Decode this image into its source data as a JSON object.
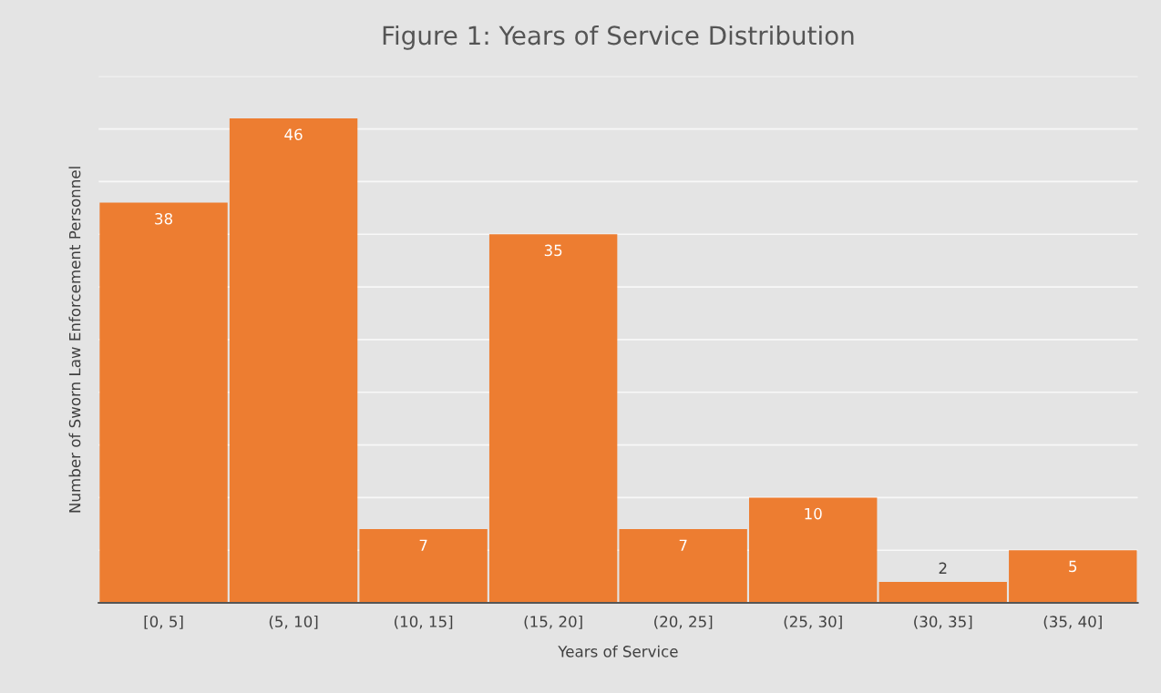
{
  "chart_data": {
    "type": "bar",
    "title": "Figure 1: Years of Service Distribution",
    "xlabel": "Years of Service",
    "ylabel": "Number of Sworn Law Enforcement Personnel",
    "categories": [
      "[0, 5]",
      "(5, 10]",
      "(10, 15]",
      "(15, 20]",
      "(20, 25]",
      "(25, 30]",
      "(30, 35]",
      "(35, 40]"
    ],
    "values": [
      38,
      46,
      7,
      35,
      7,
      10,
      2,
      5
    ],
    "color": "#ed7d31",
    "data_labels": true,
    "ylim": [
      0,
      50
    ],
    "yticks": [
      {
        "value": 0,
        "label": null
      },
      {
        "value": 5,
        "label": null
      },
      {
        "value": 10,
        "label": null
      },
      {
        "value": 15,
        "label": null
      },
      {
        "value": 20,
        "label": null
      },
      {
        "value": 25,
        "label": null
      },
      {
        "value": 30,
        "label": null
      },
      {
        "value": 35,
        "label": null
      },
      {
        "value": 40,
        "label": null
      },
      {
        "value": 45,
        "label": null
      },
      {
        "value": 50,
        "label": null
      }
    ],
    "grid": "y",
    "tick_labels": "x"
  }
}
